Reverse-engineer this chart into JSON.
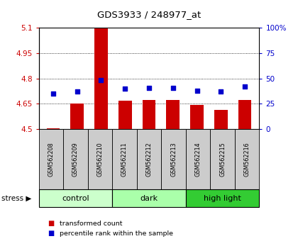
{
  "title": "GDS3933 / 248977_at",
  "samples": [
    "GSM562208",
    "GSM562209",
    "GSM562210",
    "GSM562211",
    "GSM562212",
    "GSM562213",
    "GSM562214",
    "GSM562215",
    "GSM562216"
  ],
  "red_values": [
    4.507,
    4.653,
    5.095,
    4.668,
    4.671,
    4.674,
    4.644,
    4.615,
    4.672
  ],
  "blue_values": [
    35,
    37,
    48,
    40,
    41,
    41,
    38,
    37,
    42
  ],
  "groups": [
    {
      "label": "control",
      "start": 0,
      "end": 3,
      "color": "#ccffcc"
    },
    {
      "label": "dark",
      "start": 3,
      "end": 6,
      "color": "#aaffaa"
    },
    {
      "label": "high light",
      "start": 6,
      "end": 9,
      "color": "#33cc33"
    }
  ],
  "ylim_left": [
    4.5,
    5.1
  ],
  "ylim_right": [
    0,
    100
  ],
  "yticks_left": [
    4.5,
    4.65,
    4.8,
    4.95,
    5.1
  ],
  "yticks_left_labels": [
    "4.5",
    "4.65",
    "4.8",
    "4.95",
    "5.1"
  ],
  "yticks_right": [
    0,
    25,
    50,
    75,
    100
  ],
  "yticks_right_labels": [
    "0",
    "25",
    "50",
    "75",
    "100%"
  ],
  "bar_bottom": 4.5,
  "bar_width": 0.55,
  "red_color": "#cc0000",
  "blue_color": "#0000cc",
  "bg_color": "#ffffff",
  "sample_box_color": "#cccccc",
  "legend_red": "transformed count",
  "legend_blue": "percentile rank within the sample"
}
